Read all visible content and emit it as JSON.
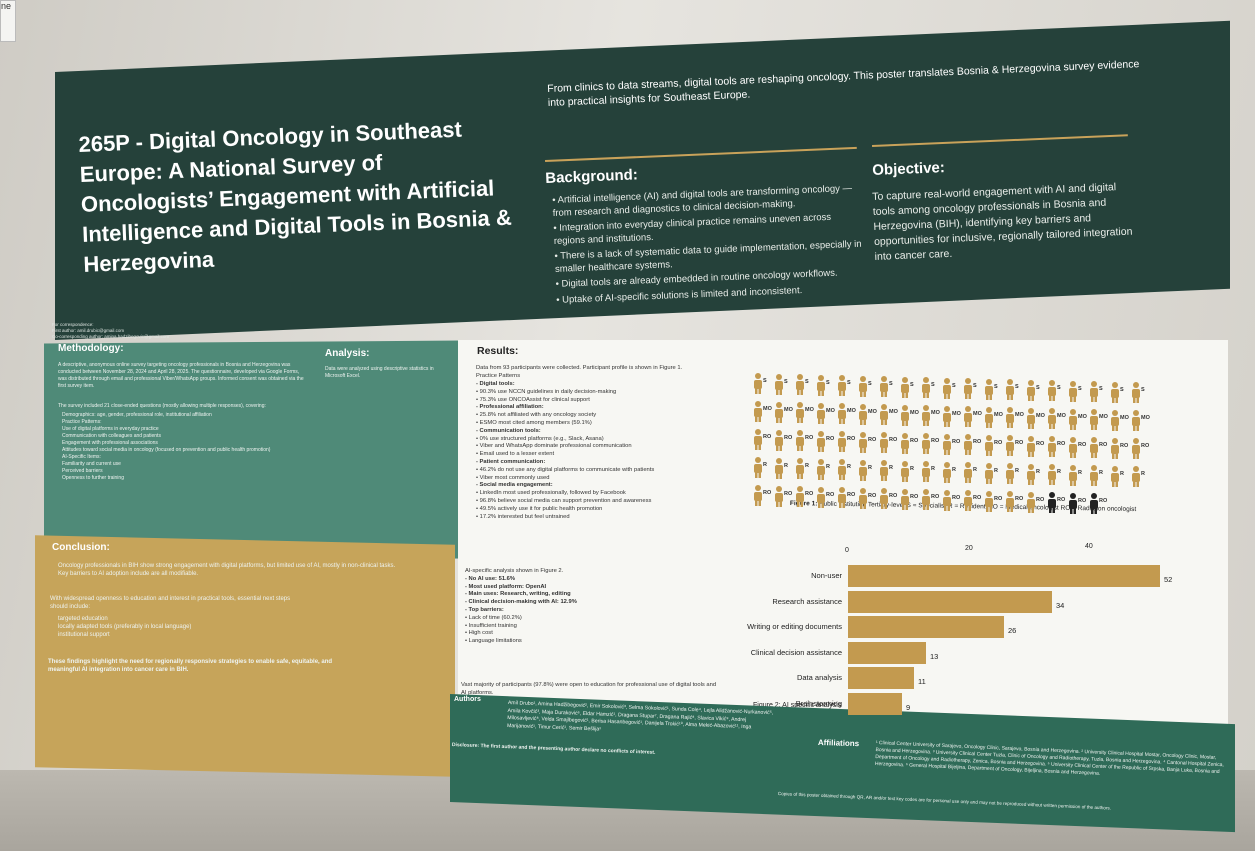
{
  "corner_note": "ne",
  "title": "265P - Digital Oncology in Southeast Europe: A National Survey of Oncologists’ Engagement with Artificial Intelligence and Digital Tools in Bosnia & Herzegovina",
  "intro": "From clinics to data streams, digital tools are reshaping oncology. This poster translates Bosnia & Herzegovina survey evidence into practical insights for Southeast Europe.",
  "background": {
    "heading": "Background:",
    "items": [
      "Artificial intelligence (AI) and digital tools are transforming oncology — from research and diagnostics to clinical decision-making.",
      "Integration into everyday clinical practice remains uneven across regions and institutions.",
      "There is a lack of systematic data to guide implementation, especially in smaller healthcare systems.",
      "Digital tools are already embedded in routine oncology workflows.",
      "Uptake of AI-specific solutions is limited and inconsistent."
    ]
  },
  "objective": {
    "heading": "Objective:",
    "text": "To capture real-world engagement with AI and digital tools among oncology professionals in Bosnia and Herzegovina (BIH), identifying key barriers and opportunities for inclusive, regionally tailored integration into cancer care."
  },
  "correspondence": {
    "label": "For correspondence:",
    "first": "First author: amil.drubic@gmail.com",
    "second": "Co-corresponding author: amina.hadzibegovic@gmail.com"
  },
  "methodology": {
    "heading": "Methodology:",
    "text": "A descriptive, anonymous online survey targeting oncology professionals in Bosnia and Herzegovina was conducted between November 28, 2024 and April 28, 2025. The questionnaire, developed via Google Forms, was distributed through email and professional Viber/WhatsApp groups. Informed consent was obtained via the first survey item.",
    "intro2": "The survey included 21 close-ended questions (mostly allowing multiple responses), covering:",
    "items": [
      "Demographics: age, gender, professional role, institutional affiliation",
      "Practice Patterns:",
      "Use of digital platforms in everyday practice",
      "Communication with colleagues and patients",
      "Engagement with professional associations",
      "Attitudes toward social media in oncology (focused on prevention and public health promotion)",
      "AI-Specific Items:",
      "Familiarity and current use",
      "Perceived barriers",
      "Openness to further training"
    ]
  },
  "analysis": {
    "heading": "Analysis:",
    "text": "Data were analyzed using descriptive statistics in Microsoft Excel."
  },
  "conclusion": {
    "heading": "Conclusion:",
    "items": [
      "Oncology professionals in BIH show strong engagement with digital platforms, but limited use of AI, mostly in non-clinical tasks.",
      "Key barriers to AI adoption include are all modifiable."
    ],
    "text2": "With widespread openness to education and interest in practical tools, essential next steps should include:",
    "steps": [
      "targeted education",
      "locally adapted tools (preferably in local language)",
      "institutional support"
    ],
    "final": "These findings highlight the need for regionally responsive strategies to enable safe, equitable, and meaningful AI integration into cancer care in BIH."
  },
  "results": {
    "heading": "Results:",
    "intro": "Data from 93 participants were collected. Participant profile is shown in Figure 1.",
    "sub": "Practice Patterns",
    "lines": [
      "- Digital tools:",
      "• 90.3% use NCCN guidelines in daily decision-making",
      "• 75.3% use ONCOAssist for clinical support",
      "- Professional affiliation:",
      "• 25.8% not affiliated with any oncology society",
      "• ESMO most cited among members (59.1%)",
      "- Communication tools:",
      "• 0% use structured platforms (e.g., Slack, Asana)",
      "• Viber and WhatsApp dominate professional communication",
      "• Email used to a lesser extent",
      "- Patient communication:",
      "• 46.2% do not use any digital platforms to communicate with patients",
      "• Viber most commonly used",
      "- Social media engagement:",
      "• LinkedIn most used professionally, followed by Facebook",
      "• 96.8% believe social media can support prevention and awareness",
      "• 49.5% actively use it for public health promotion",
      "• 17.2% interested but feel untrained"
    ],
    "ai_lines": [
      "AI-specific analysis shown in Figure 2.",
      "- No AI use: 51.6%",
      "- Most used platform: OpenAI",
      "- Main uses: Research, writing, editing",
      "- Clinical decision-making with AI: 12.9%",
      "- Top barriers:",
      "• Lack of time (60.2%)",
      "• Insufficient training",
      "• High cost",
      "• Language limitations"
    ],
    "closing": "Vast majority of participants (97.8%) were open to education for professional use of digital tools and AI platforms."
  },
  "figure1": {
    "caption_prefix": "Figure 1:",
    "caption_rest": "Public institution  Tertiary-level  S = Specialist  R = Resident  MO = Medical oncologist  RO = Radiation oncologist",
    "rows": [
      {
        "label": "S",
        "count": 19
      },
      {
        "label": "MO",
        "count": 19
      },
      {
        "label": "RO",
        "count": 19
      },
      {
        "label": "R",
        "count": 19
      },
      {
        "label": "RO",
        "count": 17
      }
    ]
  },
  "chart_data": {
    "type": "bar",
    "orientation": "horizontal",
    "title": "Figure 2: AI specific analysis",
    "categories": [
      "Non-user",
      "Research assistance",
      "Writing or editing documents",
      "Clinical decision assistance",
      "Data analysis",
      "Brainstorming"
    ],
    "values": [
      52,
      34,
      26,
      13,
      11,
      9
    ],
    "ticks": [
      0,
      20,
      40
    ],
    "xlim": [
      0,
      55
    ],
    "color": "#c39a4f"
  },
  "authors": {
    "heading": "Authors",
    "text": "Amil Drubo¹, Amina Hadžibegović², Emir Sokolović³, Selma Sokolović¹, Sunda Cole⁴, Lejla Alidžanović-Nurkanović⁵, Amila Kovčić³, Maja Duraković⁶, Eldar Hamzić¹, Dragana Stupar⁷, Dragana Rajić⁸, Slavica Vikić⁹, Andrej Milosavljević⁸, Velda Smajlbegović¹, Berisa Hasanbegović¹, Danijela Trokić¹⁰, Alma Mekić-Abazović¹¹, Inga Marijanović¹, Timur Cerić¹, Semir Bešlija¹",
    "disclosure": "Disclosure: The first author and the presenting author declare no conflicts of interest."
  },
  "affiliations": {
    "heading": "Affiliations",
    "text": "¹ Clinical Center University of Sarajevo, Oncology Clinic, Sarajevo, Bosnia and Herzegovina. ² University Clinical Hospital Mostar, Oncology Clinic, Mostar, Bosnia and Herzegovina. ³ University Clinical Center Tuzla, Clinic of Oncology and Radiotherapy, Tuzla, Bosnia and Herzegovina. ⁴ Cantonal Hospital Zenica, Department of Oncology and Radiotherapy, Zenica, Bosnia and Herzegovina. ⁵ University Clinical Center of the Republic of Srpska, Banja Luka, Bosnia and Herzegovina. ⁶ General Hospital Bijeljina, Department of Oncology, Bijeljina, Bosnia and Herzegovina.",
    "copies": "Copies of this poster obtained through QR, AR and/or text key codes are for personal use only and may not be reproduced without written permission of the authors."
  }
}
